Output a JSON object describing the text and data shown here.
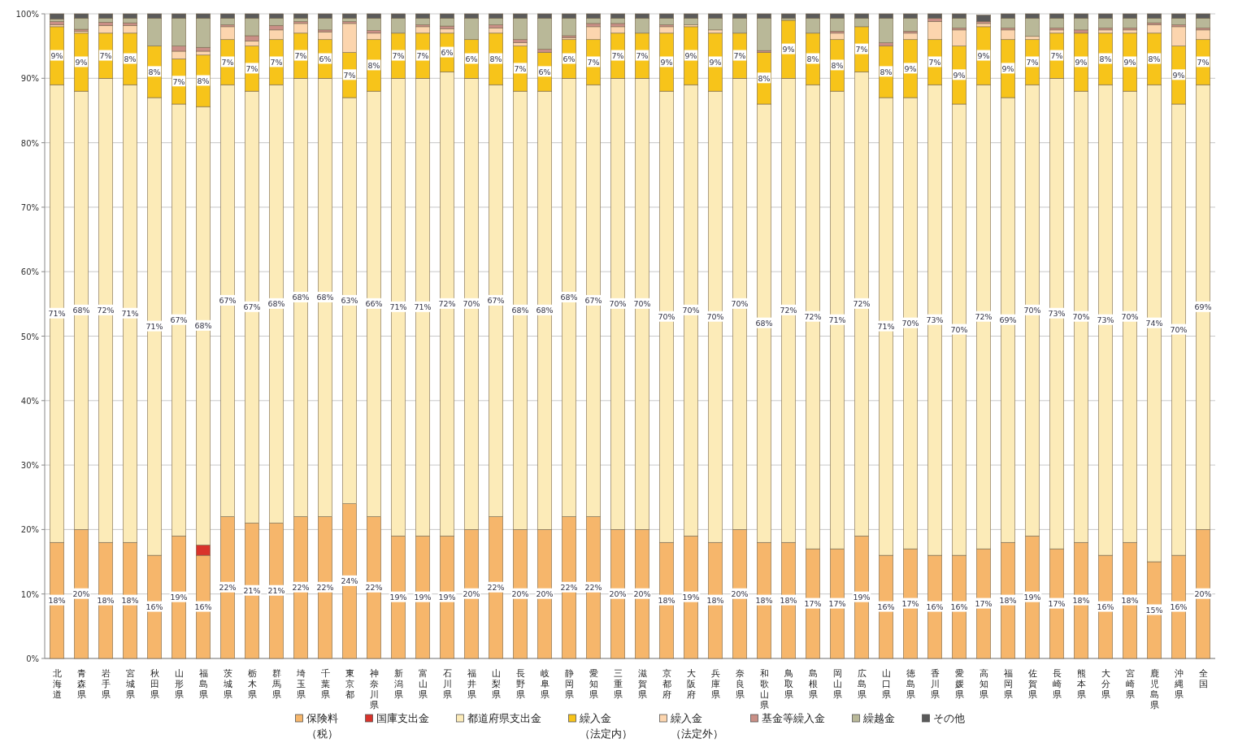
{
  "chart_data": {
    "type": "bar",
    "stacked": true,
    "categories": [
      "北海道",
      "青森県",
      "岩手県",
      "宮城県",
      "秋田県",
      "山形県",
      "福島県",
      "茨城県",
      "栃木県",
      "群馬県",
      "埼玉県",
      "千葉県",
      "東京都",
      "神奈川県",
      "新潟県",
      "富山県",
      "石川県",
      "福井県",
      "山梨県",
      "長野県",
      "岐阜県",
      "静岡県",
      "愛知県",
      "三重県",
      "滋賀県",
      "京都府",
      "大阪府",
      "兵庫県",
      "奈良県",
      "和歌山県",
      "鳥取県",
      "島根県",
      "岡山県",
      "広島県",
      "山口県",
      "徳島県",
      "香川県",
      "愛媛県",
      "高知県",
      "福岡県",
      "佐賀県",
      "長崎県",
      "熊本県",
      "大分県",
      "宮崎県",
      "鹿児島県",
      "沖縄県",
      "全国"
    ],
    "ylim": [
      0,
      100
    ],
    "yticks": [
      {
        "value": 0,
        "label": "0%"
      },
      {
        "value": 10,
        "label": "10%"
      },
      {
        "value": 20,
        "label": "20%"
      },
      {
        "value": 30,
        "label": "30%"
      },
      {
        "value": 40,
        "label": "40%"
      },
      {
        "value": 50,
        "label": "50%"
      },
      {
        "value": 60,
        "label": "60%"
      },
      {
        "value": 70,
        "label": "70%"
      },
      {
        "value": 80,
        "label": "80%"
      },
      {
        "value": 90,
        "label": "90%"
      },
      {
        "value": 100,
        "label": "100%"
      }
    ],
    "grid": "y",
    "legend": "bottom",
    "series": [
      {
        "name": "保険料（税）",
        "color": "#f6b66b",
        "values": [
          18,
          20,
          18,
          18,
          16,
          19,
          16,
          22,
          21,
          21,
          22,
          22,
          24,
          22,
          19,
          19,
          19,
          20,
          22,
          20,
          20,
          22,
          22,
          20,
          20,
          18,
          19,
          18,
          20,
          18,
          18,
          17,
          17,
          19,
          16,
          17,
          16,
          16,
          17,
          18,
          19,
          17,
          18,
          16,
          18,
          15,
          16,
          20
        ],
        "value_labels": [
          "18%",
          "20%",
          "18%",
          "18%",
          "16%",
          "19%",
          "16%",
          "22%",
          "21%",
          "21%",
          "22%",
          "22%",
          "24%",
          "22%",
          "19%",
          "19%",
          "19%",
          "20%",
          "22%",
          "20%",
          "20%",
          "22%",
          "22%",
          "20%",
          "20%",
          "18%",
          "19%",
          "18%",
          "20%",
          "18%",
          "18%",
          "17%",
          "17%",
          "19%",
          "16%",
          "17%",
          "16%",
          "16%",
          "17%",
          "18%",
          "19%",
          "17%",
          "18%",
          "16%",
          "18%",
          "15%",
          "16%",
          "20%"
        ]
      },
      {
        "name": "国庫支出金",
        "color": "#d9332b",
        "values": [
          null,
          null,
          null,
          null,
          null,
          null,
          1.6,
          null,
          null,
          null,
          null,
          null,
          null,
          null,
          null,
          null,
          null,
          null,
          null,
          null,
          null,
          null,
          null,
          null,
          null,
          null,
          null,
          null,
          null,
          null,
          null,
          null,
          null,
          null,
          null,
          null,
          null,
          null,
          null,
          null,
          null,
          null,
          null,
          null,
          null,
          null,
          null,
          null
        ]
      },
      {
        "name": "都道府県支出金",
        "color": "#fcebb8",
        "values": [
          71,
          68,
          72,
          71,
          71,
          67,
          68,
          67,
          67,
          68,
          68,
          68,
          63,
          66,
          71,
          71,
          72,
          70,
          67,
          68,
          68,
          68,
          67,
          70,
          70,
          70,
          70,
          70,
          70,
          68,
          72,
          72,
          71,
          72,
          71,
          70,
          73,
          70,
          72,
          69,
          70,
          73,
          70,
          73,
          70,
          74,
          70,
          69
        ],
        "value_labels": [
          "71%",
          "68%",
          "72%",
          "71%",
          "71%",
          "67%",
          "68%",
          "67%",
          "67%",
          "68%",
          "68%",
          "68%",
          "63%",
          "66%",
          "71%",
          "71%",
          "72%",
          "70%",
          "67%",
          "68%",
          "68%",
          "68%",
          "67%",
          "70%",
          "70%",
          "70%",
          "70%",
          "70%",
          "70%",
          "68%",
          "72%",
          "72%",
          "71%",
          "72%",
          "71%",
          "70%",
          "73%",
          "70%",
          "72%",
          "69%",
          "70%",
          "73%",
          "70%",
          "73%",
          "70%",
          "74%",
          "70%",
          "69%"
        ]
      },
      {
        "name": "繰入金（法定内）",
        "color": "#f7c41a",
        "values": [
          9,
          9,
          7,
          8,
          8,
          7,
          8,
          7,
          7,
          7,
          7,
          6,
          7,
          8,
          7,
          7,
          6,
          6,
          8,
          7,
          6,
          6,
          7,
          7,
          7,
          9,
          9,
          9,
          7,
          8,
          9,
          8,
          8,
          7,
          8,
          9,
          7,
          9,
          9,
          9,
          7,
          7,
          9,
          8,
          9,
          8,
          9,
          7
        ],
        "value_labels": [
          "9%",
          "9%",
          "7%",
          "8%",
          "8%",
          "7%",
          "8%",
          "7%",
          "7%",
          "7%",
          "7%",
          "6%",
          "7%",
          "8%",
          "7%",
          "7%",
          "6%",
          "6%",
          "8%",
          "7%",
          "6%",
          "6%",
          "7%",
          "7%",
          "7%",
          "9%",
          "9%",
          "9%",
          "7%",
          "8%",
          "9%",
          "8%",
          "8%",
          "7%",
          "8%",
          "9%",
          "7%",
          "9%",
          "9%",
          "9%",
          "7%",
          "7%",
          "9%",
          "8%",
          "9%",
          "8%",
          "9%",
          "7%"
        ]
      },
      {
        "name": "繰入金（法定外）",
        "color": "#fcd5ae",
        "values": [
          0.3,
          0.3,
          1.2,
          1.2,
          null,
          1.2,
          0.6,
          2,
          0.8,
          1.5,
          1.5,
          1.2,
          4.5,
          1,
          null,
          1,
          0.7,
          null,
          0.8,
          0.5,
          null,
          0.3,
          2,
          1,
          null,
          1,
          0.3,
          0.5,
          null,
          null,
          null,
          null,
          1,
          null,
          null,
          1,
          2.8,
          2.5,
          0.5,
          1.5,
          0.5,
          0.5,
          null,
          0.5,
          0.5,
          1.3,
          3,
          1.5
        ]
      },
      {
        "name": "基金等繰入金",
        "color": "#c98f86",
        "values": [
          0.5,
          0.3,
          0.5,
          0.4,
          null,
          0.8,
          0.6,
          0.3,
          0.8,
          0.7,
          0.3,
          0.3,
          0.3,
          0.4,
          null,
          0.3,
          0.4,
          null,
          0.5,
          0.5,
          0.5,
          0.3,
          0.5,
          0.5,
          null,
          0.3,
          null,
          null,
          null,
          0.3,
          null,
          null,
          0.3,
          null,
          0.5,
          0.3,
          0.5,
          0.3,
          0.3,
          0.3,
          null,
          0.3,
          0.5,
          0.3,
          0.3,
          0.3,
          0.3,
          0.3
        ]
      },
      {
        "name": "繰越金",
        "color": "#b9b898",
        "values": [
          0.4,
          1.7,
          0.6,
          0.7,
          4.3,
          4.3,
          4.5,
          1,
          2.7,
          1.1,
          0.5,
          1.8,
          0.5,
          1.9,
          2.3,
          1,
          1.2,
          3.3,
          1,
          3.3,
          4.8,
          2.7,
          0.8,
          0.8,
          2.3,
          1,
          1,
          1.8,
          2.3,
          5,
          0.3,
          2.3,
          2,
          1.3,
          3.8,
          2,
          null,
          1.5,
          null,
          1.5,
          2.8,
          1.5,
          1.8,
          1.5,
          1.5,
          0.7,
          1,
          1.5
        ]
      },
      {
        "name": "その他",
        "color": "#5a5a5a",
        "values": [
          0.8,
          0.7,
          0.7,
          0.7,
          0.7,
          0.7,
          0.7,
          0.7,
          0.7,
          0.7,
          0.7,
          0.7,
          0.7,
          0.7,
          0.7,
          0.7,
          0.7,
          0.7,
          0.7,
          0.7,
          0.7,
          0.7,
          0.7,
          0.7,
          0.7,
          0.7,
          0.7,
          0.7,
          0.7,
          0.7,
          0.7,
          0.7,
          0.7,
          0.7,
          0.7,
          0.7,
          0.7,
          0.7,
          1.0,
          0.7,
          0.7,
          0.7,
          0.7,
          0.7,
          0.7,
          0.7,
          0.7,
          0.7
        ]
      }
    ]
  }
}
